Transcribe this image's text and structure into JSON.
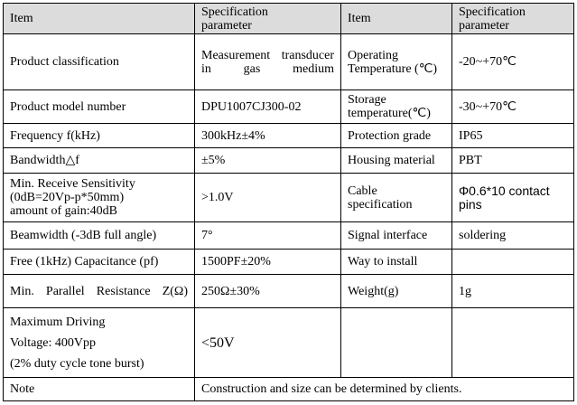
{
  "table": {
    "header": [
      "Item",
      "Specification\nparameter",
      "Item",
      "Specification\nparameter"
    ],
    "rows": [
      [
        "Product classification",
        "Measurement transducer in gas medium",
        "Operating\nTemperature (℃)",
        "-20~+70℃"
      ],
      [
        "Product model number",
        "DPU1007CJ300-02",
        "Storage\ntemperature(℃)",
        "-30~+70℃"
      ],
      [
        "Frequency f(kHz)",
        "300kHz±4%",
        "Protection grade",
        "IP65"
      ],
      [
        "Bandwidth△f",
        "±5%",
        "Housing material",
        "PBT"
      ],
      [
        "Min. Receive Sensitivity\n(0dB=20Vp-p*50mm)\namount of gain:40dB",
        ">1.0V",
        "Cable\nspecification",
        "Φ0.6*10 contact pins"
      ],
      [
        "Beamwidth (-3dB full angle)",
        "7°",
        "Signal interface",
        "soldering"
      ],
      [
        "Free (1kHz) Capacitance (pf)",
        "1500PF±20%",
        "Way to install"
      ],
      [
        "Min. Parallel Resistance Z(Ω)",
        "250Ω±30%",
        "Weight(g)",
        "1g"
      ],
      [
        "Maximum Driving\nVoltage: 400Vpp\n(2% duty cycle tone burst)",
        "<50V"
      ],
      [
        "Note",
        "Construction and size can be determined by clients."
      ]
    ]
  }
}
